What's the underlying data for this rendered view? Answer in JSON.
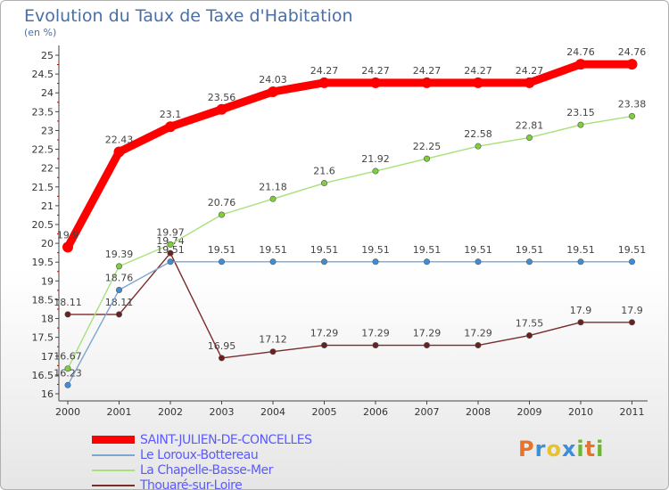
{
  "header": {
    "title": "Evolution du Taux de Taxe d'Habitation",
    "unit": "(en %)"
  },
  "logo": {
    "letters": [
      "P",
      "r",
      "o",
      "x",
      "i",
      "t",
      "i"
    ],
    "colors": [
      "#e8732a",
      "#3c8ed8",
      "#e8c22a",
      "#3c8ed8",
      "#6ab82e",
      "#e8732a",
      "#6ab82e"
    ]
  },
  "chart_data": {
    "type": "line",
    "title": "Evolution du Taux de Taxe d'Habitation",
    "ylabel": "(en %)",
    "xlabel": "",
    "ylim": [
      16,
      25
    ],
    "yticks": [
      "16",
      "16.5",
      "17",
      "17.5",
      "18",
      "18.5",
      "19",
      "19.5",
      "20",
      "20.5",
      "21",
      "21.5",
      "22",
      "22.5",
      "23",
      "23.5",
      "24",
      "24.5",
      "25"
    ],
    "x": [
      "2000",
      "2001",
      "2002",
      "2003",
      "2004",
      "2005",
      "2006",
      "2007",
      "2008",
      "2009",
      "2010",
      "2011"
    ],
    "grid": false,
    "legend": "bottom-left",
    "series": [
      {
        "name": "SAINT-JULIEN-DE-CONCELLES",
        "color": "#ff0000",
        "marker": "#ff0000",
        "values": [
          19.9,
          22.43,
          23.1,
          23.56,
          24.03,
          24.27,
          24.27,
          24.27,
          24.27,
          24.27,
          24.76,
          24.76
        ],
        "labels": [
          "19.9",
          "22.43",
          "23.1",
          "23.56",
          "24.03",
          "24.27",
          "24.27",
          "24.27",
          "24.27",
          "24.27",
          "24.76",
          "24.76"
        ]
      },
      {
        "name": "Le Loroux-Bottereau",
        "color": "#7ba7cf",
        "marker": "#3c8ed8",
        "values": [
          16.23,
          18.76,
          19.51,
          19.51,
          19.51,
          19.51,
          19.51,
          19.51,
          19.51,
          19.51,
          19.51,
          19.51
        ],
        "labels": [
          "16.23",
          "18.76",
          "19.51",
          "19.51",
          "19.51",
          "19.51",
          "19.51",
          "19.51",
          "19.51",
          "19.51",
          "19.51",
          "19.51"
        ]
      },
      {
        "name": "La Chapelle-Basse-Mer",
        "color": "#a8e07a",
        "marker": "#7fcf3a",
        "values": [
          16.67,
          19.39,
          19.97,
          20.76,
          21.18,
          21.6,
          21.92,
          22.25,
          22.58,
          22.81,
          23.15,
          23.38
        ],
        "labels": [
          "16.67",
          "19.39",
          "19.97",
          "20.76",
          "21.18",
          "21.6",
          "21.92",
          "22.25",
          "22.58",
          "22.81",
          "23.15",
          "23.38"
        ]
      },
      {
        "name": "Thouaré-sur-Loire",
        "color": "#7a2b2b",
        "marker": "#6b1f1f",
        "values": [
          18.11,
          18.11,
          19.74,
          16.95,
          17.12,
          17.29,
          17.29,
          17.29,
          17.29,
          17.55,
          17.9,
          17.9
        ],
        "labels": [
          "18.11",
          "18.11",
          "19.74",
          "16.95",
          "17.12",
          "17.29",
          "17.29",
          "17.29",
          "17.29",
          "17.55",
          "17.9",
          "17.9"
        ]
      }
    ]
  }
}
